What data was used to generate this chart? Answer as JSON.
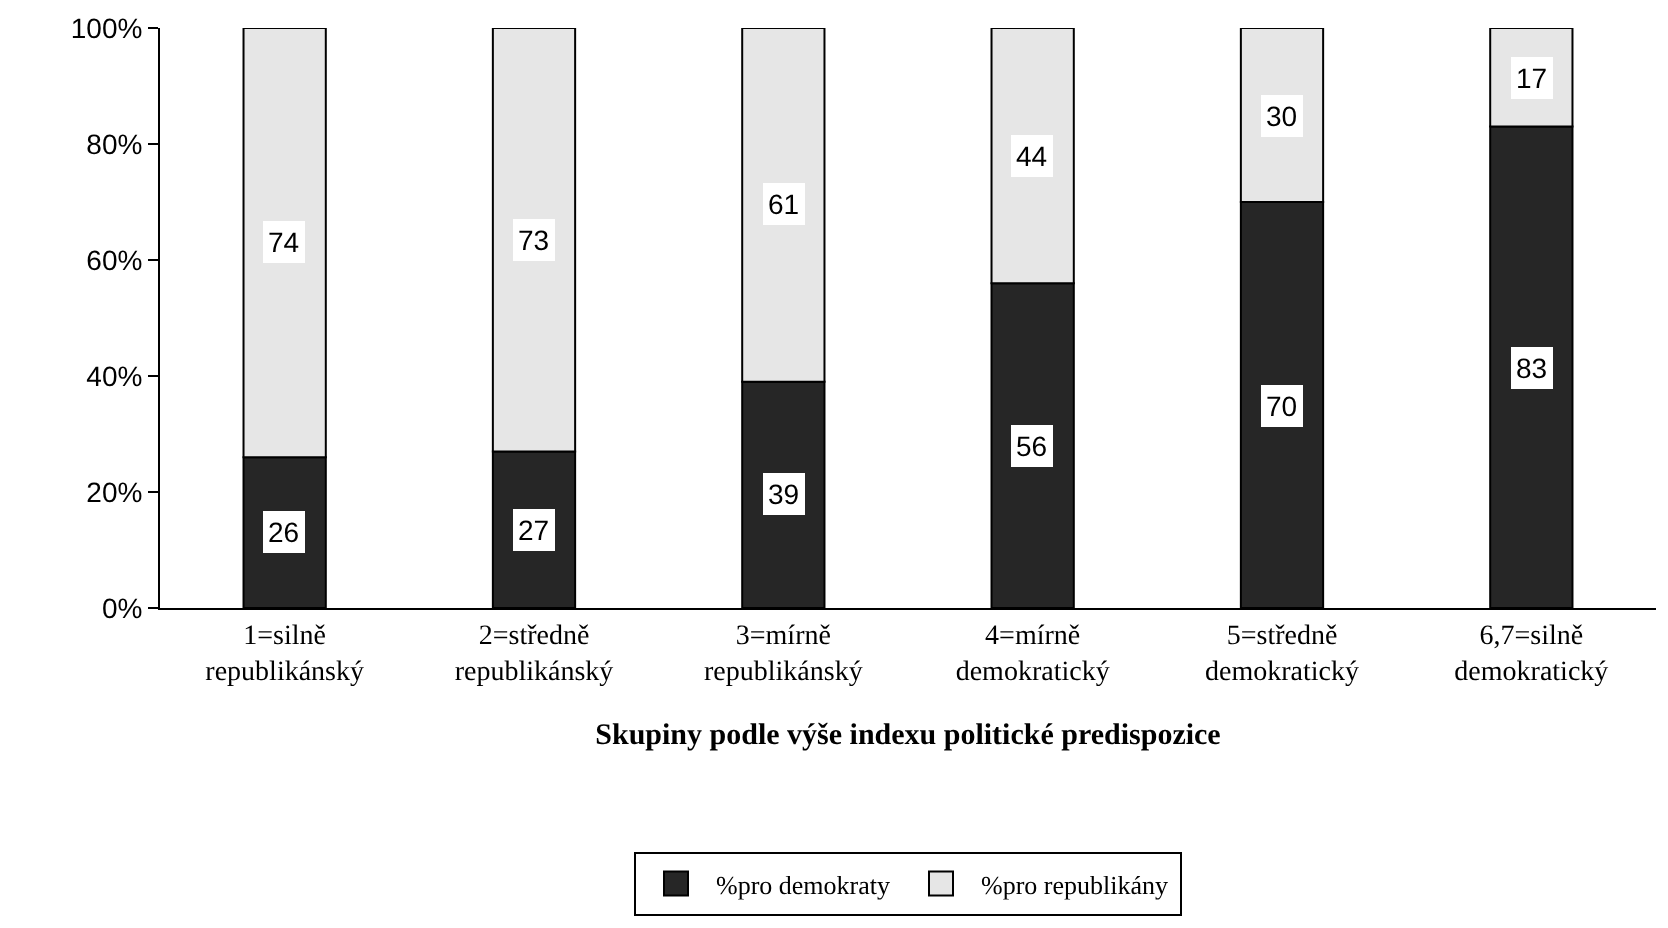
{
  "chart_data": {
    "type": "bar",
    "stacked": true,
    "xlabel": "Skupiny podle výše indexu politické predispozice",
    "categories": [
      "1=silně\nrepublikánský",
      "2=středně\nrepublikánský",
      "3=mírně\nrepublikánský",
      "4=mírně\ndemokratický",
      "5=středně\ndemokratický",
      "6,7=silně\ndemokratický"
    ],
    "series": [
      {
        "name": "%pro demokraty",
        "color": "#262626",
        "values": [
          26,
          27,
          39,
          56,
          70,
          83
        ]
      },
      {
        "name": "%pro republikány",
        "color": "#e6e6e6",
        "values": [
          74,
          73,
          61,
          44,
          30,
          17
        ]
      }
    ],
    "ylim": [
      0,
      100
    ],
    "yticks": [
      {
        "value": 0,
        "label": "0%"
      },
      {
        "value": 20,
        "label": "20%"
      },
      {
        "value": 40,
        "label": "40%"
      },
      {
        "value": 60,
        "label": "60%"
      },
      {
        "value": 80,
        "label": "80%"
      },
      {
        "value": 100,
        "label": "100%"
      }
    ],
    "data_labels": true,
    "legend": "bottom"
  }
}
